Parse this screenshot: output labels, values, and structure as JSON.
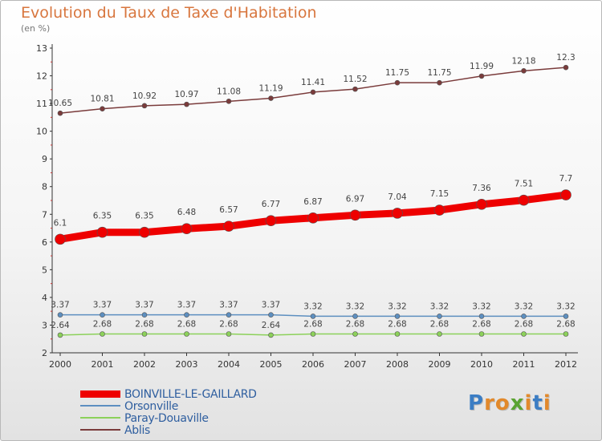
{
  "title": "Evolution du Taux de Taxe d'Habitation",
  "unit": "(en %)",
  "logo": {
    "letters": [
      "P",
      "r",
      "o",
      "x",
      "i",
      "t",
      "i"
    ],
    "colors": [
      "#3b7dc4",
      "#e2892b",
      "#e2892b",
      "#5aa331",
      "#e2892b",
      "#3b7dc4",
      "#e2892b"
    ]
  },
  "chart_data": {
    "type": "line",
    "title": "Evolution du Taux de Taxe d'Habitation",
    "ylabel": "(en %)",
    "xlabel": "",
    "x": [
      "2000",
      "2001",
      "2002",
      "2003",
      "2004",
      "2005",
      "2006",
      "2007",
      "2008",
      "2009",
      "2010",
      "2011",
      "2012"
    ],
    "ylim": [
      2,
      13
    ],
    "yticks": [
      "2",
      "3",
      "4",
      "5",
      "6",
      "7",
      "8",
      "9",
      "10",
      "11",
      "12",
      "13"
    ],
    "grid": false,
    "legend": "bottom-left",
    "series": [
      {
        "name": "Ablis",
        "color": "#7a3b3b",
        "labels": [
          "10.65",
          "10.81",
          "10.92",
          "10.97",
          "11.08",
          "11.19",
          "11.41",
          "11.52",
          "11.75",
          "11.75",
          "11.99",
          "12.18",
          "12.3"
        ],
        "values": [
          10.65,
          10.81,
          10.92,
          10.97,
          11.08,
          11.19,
          11.41,
          11.52,
          11.75,
          11.75,
          11.99,
          12.18,
          12.3
        ]
      },
      {
        "name": "BOINVILLE-LE-GAILLARD",
        "color": "#ee0000",
        "labels": [
          "6.1",
          "6.35",
          "6.35",
          "6.48",
          "6.57",
          "6.77",
          "6.87",
          "6.97",
          "7.04",
          "7.15",
          "7.36",
          "7.51",
          "7.7"
        ],
        "values": [
          6.1,
          6.35,
          6.35,
          6.48,
          6.57,
          6.77,
          6.87,
          6.97,
          7.04,
          7.15,
          7.36,
          7.51,
          7.7
        ]
      },
      {
        "name": "Orsonville",
        "color": "#5d8fc0",
        "labels": [
          "3.37",
          "3.37",
          "3.37",
          "3.37",
          "3.37",
          "3.37",
          "3.32",
          "3.32",
          "3.32",
          "3.32",
          "3.32",
          "3.32",
          "3.32"
        ],
        "values": [
          3.37,
          3.37,
          3.37,
          3.37,
          3.37,
          3.37,
          3.32,
          3.32,
          3.32,
          3.32,
          3.32,
          3.32,
          3.32
        ]
      },
      {
        "name": "Paray-Douaville",
        "color": "#8cd15a",
        "labels": [
          "2.64",
          "2.68",
          "2.68",
          "2.68",
          "2.68",
          "2.64",
          "2.68",
          "2.68",
          "2.68",
          "2.68",
          "2.68",
          "2.68",
          "2.68"
        ],
        "values": [
          2.64,
          2.68,
          2.68,
          2.68,
          2.68,
          2.64,
          2.68,
          2.68,
          2.68,
          2.68,
          2.68,
          2.68,
          2.68
        ]
      }
    ],
    "legend_entries": [
      "BOINVILLE-LE-GAILLARD",
      "Orsonville",
      "Paray-Douaville",
      "Ablis"
    ]
  }
}
